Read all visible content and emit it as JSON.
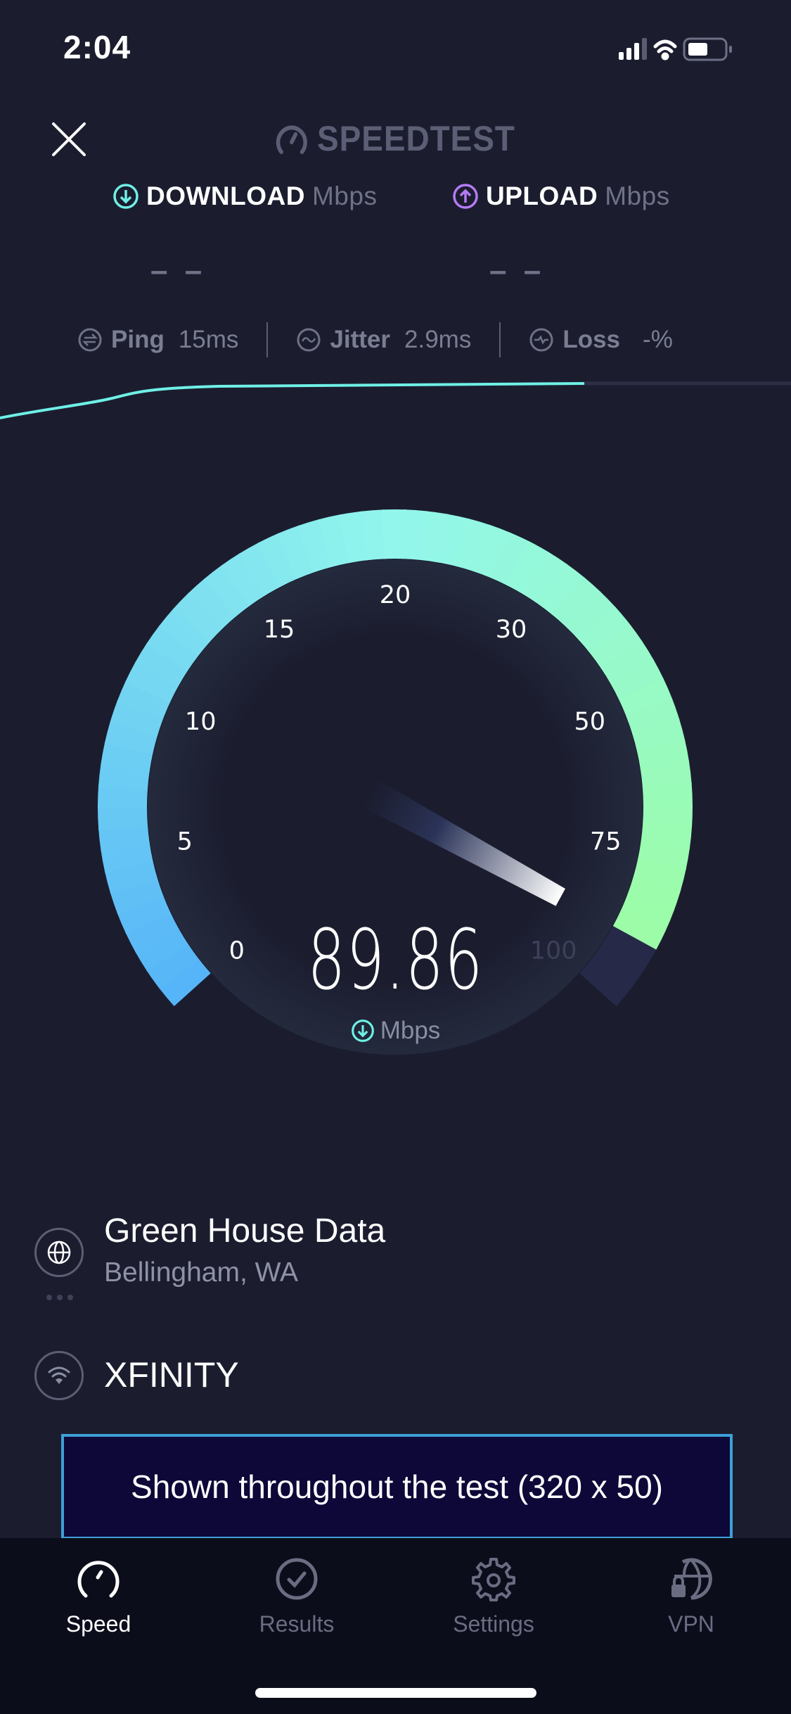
{
  "status_bar": {
    "time": "2:04",
    "battery_level": 0.5
  },
  "header": {
    "close_icon": "close-icon",
    "logo_text": "SPEEDTEST"
  },
  "download": {
    "label": "DOWNLOAD",
    "unit": "Mbps",
    "value": "– –",
    "color": "#6ff0e6"
  },
  "upload": {
    "label": "UPLOAD",
    "unit": "Mbps",
    "value": "– –",
    "color": "#b57bf5"
  },
  "metrics": {
    "ping": {
      "label": "Ping",
      "value": "15",
      "unit": "ms"
    },
    "jitter": {
      "label": "Jitter",
      "value": "2.9",
      "unit": "ms"
    },
    "loss": {
      "label": "Loss",
      "value": "-",
      "unit": "%"
    }
  },
  "gauge": {
    "value": 89.86,
    "value_text": "89.86",
    "unit": "Mbps",
    "ticks": [
      "0",
      "5",
      "10",
      "15",
      "20",
      "30",
      "50",
      "75",
      "100"
    ],
    "colors": {
      "start": "#55b4f8",
      "mid": "#92f6ec",
      "end": "#9dfd9e",
      "track": "#262a48"
    }
  },
  "server": {
    "name": "Green House Data",
    "location": "Bellingham, WA"
  },
  "isp": {
    "name": "XFINITY"
  },
  "ad": {
    "text": "Shown throughout the test (320 x 50)"
  },
  "tabs": [
    {
      "label": "Speed",
      "active": true
    },
    {
      "label": "Results"
    },
    {
      "label": "Settings"
    },
    {
      "label": "VPN"
    }
  ]
}
